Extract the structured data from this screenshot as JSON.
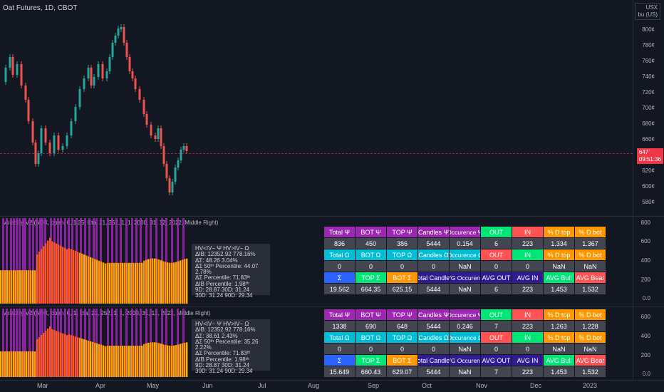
{
  "header": {
    "symbol": "Oat Futures, 1D, CBOT",
    "currency": "USX",
    "unit": "bu (US)"
  },
  "price_axis": {
    "ticks": [
      "800¢",
      "780¢",
      "760¢",
      "740¢",
      "720¢",
      "700¢",
      "680¢",
      "660¢",
      "620¢",
      "600¢",
      "580¢"
    ],
    "last_price": "647´",
    "countdown": "09:51:36"
  },
  "indicator1": {
    "title": "Volatility V2 (NDX, open, 0, 1.25, Eta, 21, 252, 1, 1, 2000, 31, 12, 2022, Middle Right)",
    "axis": [
      "800",
      "600",
      "400",
      "200",
      "0.0"
    ],
    "stats": [
      "HV<IV− Ψ  HV>IV− Ω",
      "ΔIB: 12352.92  778.16%",
      "ΔΣ: 48.26  3.04%",
      "ΔΣ 50ᵗʰ Percentile: 44.07  2.78%",
      "ΔΣ Percentile: 71.83ᵗʰ",
      "ΔIB Percentile: 1.98ᵗʰ",
      "9D: 28.87  30D: 31.24",
      "30D: 31.24  90D: 29.34"
    ],
    "table": [
      [
        "Total Ψ",
        "BOT Ψ",
        "TOP Ψ",
        "Candles Ψ",
        "Occurence Ψ",
        "OUT",
        "IN",
        "% D top",
        "% D bot"
      ],
      [
        "836",
        "450",
        "386",
        "5444",
        "0.154",
        "6",
        "223",
        "1.334",
        "1.367"
      ],
      [
        "Total Ω",
        "BOT Ω",
        "TOP Ω",
        "Candles Ω",
        "Occurence Ω",
        "OUT",
        "IN",
        "% D top",
        "% D bot"
      ],
      [
        "0",
        "0",
        "0",
        "0",
        "NaN",
        "0",
        "0",
        "NaN",
        "NaN"
      ],
      [
        "Σ",
        "TOP Σ",
        "BOT Σ",
        "Total Candles",
        "AVG Occurence",
        "AVG OUT",
        "AVG IN",
        "AVG Bull",
        "AVG Bear"
      ],
      [
        "19.562",
        "664.35",
        "625.15",
        "5444",
        "NaN",
        "6",
        "223",
        "1.453",
        "1.532"
      ]
    ]
  },
  "indicator2": {
    "title": "Volatility V2 (NDX, open, 0, 1, Eta, 21, 252, 1, 1, 2000, 31, 12, 2022, Middle Right)",
    "axis": [
      "600",
      "400",
      "200",
      "0.0"
    ],
    "stats": [
      "HV<IV− Ψ  HV>IV− Ω",
      "ΔIB: 12352.92  778.16%",
      "ΔΣ: 38.61  2.43%",
      "ΔΣ 50ᵗʰ Percentile: 35.26  2.22%",
      "ΔΣ Percentile: 71.83ᵗʰ",
      "ΔIB Percentile: 1.98ᵗʰ",
      "9D: 28.87  30D: 31.24",
      "30D: 31.24  90D: 29.34"
    ],
    "table": [
      [
        "Total Ψ",
        "BOT Ψ",
        "TOP Ψ",
        "Candles Ψ",
        "Occurence Ψ",
        "OUT",
        "IN",
        "% D top",
        "% D bot"
      ],
      [
        "1338",
        "690",
        "648",
        "5444",
        "0.246",
        "7",
        "223",
        "1.263",
        "1.228"
      ],
      [
        "Total Ω",
        "BOT Ω",
        "TOP Ω",
        "Candles Ω",
        "Occurence Ω",
        "OUT",
        "IN",
        "% D top",
        "% D bot"
      ],
      [
        "0",
        "0",
        "0",
        "0",
        "NaN",
        "0",
        "0",
        "NaN",
        "NaN"
      ],
      [
        "Σ",
        "TOP Σ",
        "BOT Σ",
        "Total Candles",
        "AVG Occurence",
        "AVG OUT",
        "AVG IN",
        "AVG Bull",
        "AVG Bear"
      ],
      [
        "15.649",
        "660.43",
        "629.07",
        "5444",
        "NaN",
        "7",
        "223",
        "1.453",
        "1.532"
      ]
    ]
  },
  "time_axis": [
    "Mar",
    "Apr",
    "May",
    "Jun",
    "Jul",
    "Aug",
    "Sep",
    "Oct",
    "Nov",
    "Dec",
    "2023"
  ],
  "colors": {
    "bg": "#131722",
    "up": "#26a69a",
    "down": "#ef5350",
    "purple": "#9c27b0",
    "cyan": "#00bcd4",
    "green": "#00e676",
    "red": "#ff5252",
    "orange": "#ff9800",
    "blue": "#2962ff",
    "indigo": "#311b92",
    "grey": "#434651"
  }
}
